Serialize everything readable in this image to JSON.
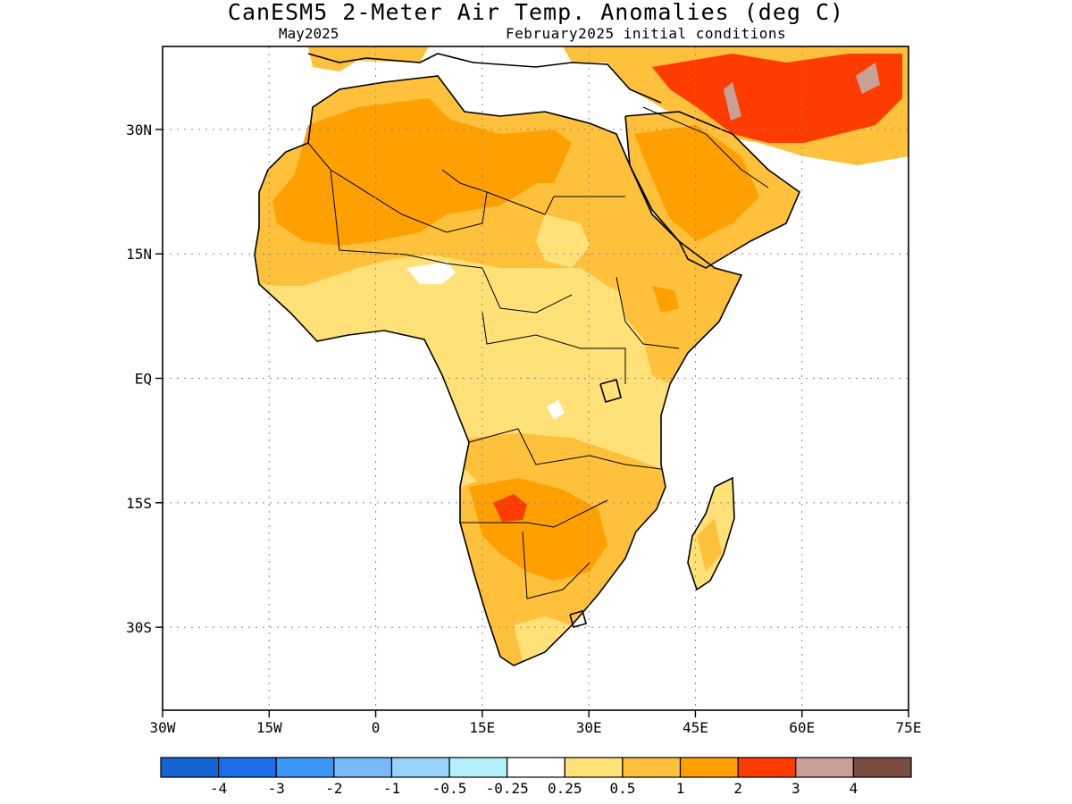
{
  "title": "CanESM5 2-Meter Air Temp. Anomalies (deg C)",
  "subtitle_left": "May2025",
  "subtitle_right": "February2025 initial conditions",
  "map": {
    "projection": "lat-lon",
    "lon_range": [
      -30,
      75
    ],
    "lat_range": [
      -40,
      40
    ],
    "grid": true,
    "lat_ticks": [
      {
        "value": 30,
        "label": "30N"
      },
      {
        "value": 15,
        "label": "15N"
      },
      {
        "value": 0,
        "label": "EQ"
      },
      {
        "value": -15,
        "label": "15S"
      },
      {
        "value": -30,
        "label": "30S"
      }
    ],
    "lon_ticks": [
      {
        "value": -30,
        "label": "30W"
      },
      {
        "value": -15,
        "label": "15W"
      },
      {
        "value": 0,
        "label": "0"
      },
      {
        "value": 15,
        "label": "15E"
      },
      {
        "value": 30,
        "label": "30E"
      },
      {
        "value": 45,
        "label": "45E"
      },
      {
        "value": 60,
        "label": "60E"
      },
      {
        "value": 75,
        "label": "75E"
      }
    ]
  },
  "colorbar": {
    "colors": [
      "#1464d2",
      "#1e6eeb",
      "#3c96f5",
      "#78b9fa",
      "#96d2fa",
      "#b4f0fa",
      "#ffffff",
      "#ffe178",
      "#ffc03c",
      "#ffa000",
      "#ff3c00",
      "#c8a096",
      "#7a4c40"
    ],
    "labels": [
      "-4",
      "-3",
      "-2",
      "-1",
      "-0.5",
      "-0.25",
      "0.25",
      "0.5",
      "1",
      "2",
      "3",
      "4"
    ]
  }
}
